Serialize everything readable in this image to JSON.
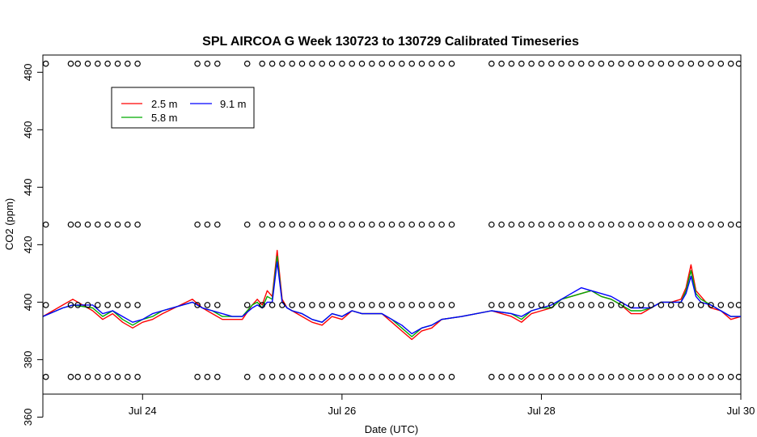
{
  "chart_data": {
    "type": "line",
    "title": "SPL AIRCOA G  Week 130723 to 130729  Calibrated Timeseries",
    "xlabel": "Date (UTC)",
    "ylabel": "CO2 (ppm)",
    "xlim": [
      23.0,
      30.0
    ],
    "ylim": [
      368,
      486
    ],
    "x_ticks": [
      {
        "value": 24,
        "label": "Jul 24"
      },
      {
        "value": 26,
        "label": "Jul 26"
      },
      {
        "value": 28,
        "label": "Jul 28"
      },
      {
        "value": 30,
        "label": "Jul 30"
      }
    ],
    "y_ticks": [
      360,
      380,
      400,
      420,
      440,
      460,
      480
    ],
    "legend": {
      "position": "top-left",
      "entries": [
        {
          "name": "2.5 m",
          "color": "#ff0000"
        },
        {
          "name": "5.8 m",
          "color": "#00aa00"
        },
        {
          "name": "9.1 m",
          "color": "#0000ff"
        }
      ]
    },
    "x": [
      23.0,
      23.2,
      23.3,
      23.5,
      23.6,
      23.7,
      23.8,
      23.9,
      24.0,
      24.1,
      24.2,
      24.5,
      24.6,
      24.7,
      24.8,
      24.9,
      25.0,
      25.1,
      25.15,
      25.2,
      25.25,
      25.3,
      25.35,
      25.4,
      25.45,
      25.5,
      25.6,
      25.7,
      25.8,
      25.9,
      26.0,
      26.1,
      26.2,
      26.3,
      26.4,
      26.5,
      26.6,
      26.7,
      26.8,
      26.9,
      27.0,
      27.2,
      27.5,
      27.7,
      27.8,
      27.9,
      28.0,
      28.1,
      28.2,
      28.3,
      28.4,
      28.5,
      28.6,
      28.7,
      28.8,
      28.9,
      29.0,
      29.1,
      29.2,
      29.3,
      29.4,
      29.45,
      29.5,
      29.55,
      29.6,
      29.7,
      29.8,
      29.9,
      30.0
    ],
    "series": [
      {
        "name": "2.5 m",
        "color": "#ff0000",
        "values": [
          395,
          399,
          401,
          397,
          394,
          396,
          393,
          391,
          393,
          394,
          396,
          401,
          398,
          396,
          394,
          394,
          394,
          399,
          401,
          399,
          404,
          402,
          418,
          401,
          398,
          397,
          395,
          393,
          392,
          395,
          394,
          397,
          396,
          396,
          396,
          393,
          390,
          387,
          390,
          391,
          394,
          395,
          397,
          395,
          393,
          396,
          397,
          398,
          401,
          402,
          403,
          404,
          402,
          401,
          399,
          396,
          396,
          398,
          400,
          400,
          401,
          405,
          413,
          404,
          402,
          398,
          397,
          394,
          395
        ]
      },
      {
        "name": "5.8 m",
        "color": "#00aa00",
        "values": [
          395,
          398,
          399,
          398,
          395,
          397,
          394,
          392,
          394,
          395,
          397,
          400,
          398,
          397,
          395,
          395,
          395,
          399,
          400,
          398,
          402,
          401,
          416,
          400,
          398,
          397,
          396,
          394,
          393,
          396,
          395,
          397,
          396,
          396,
          396,
          394,
          391,
          388,
          391,
          392,
          394,
          395,
          397,
          396,
          394,
          397,
          398,
          398,
          401,
          402,
          403,
          404,
          402,
          401,
          399,
          397,
          397,
          398,
          400,
          400,
          400,
          404,
          411,
          403,
          401,
          399,
          397,
          395,
          395
        ]
      },
      {
        "name": "9.1 m",
        "color": "#0000ff",
        "values": [
          395,
          398,
          399,
          399,
          396,
          397,
          395,
          393,
          394,
          396,
          397,
          400,
          398,
          397,
          396,
          395,
          395,
          398,
          399,
          398,
          400,
          400,
          414,
          400,
          398,
          397,
          396,
          394,
          393,
          396,
          395,
          397,
          396,
          396,
          396,
          394,
          392,
          389,
          391,
          392,
          394,
          395,
          397,
          396,
          395,
          397,
          398,
          399,
          401,
          403,
          405,
          404,
          403,
          402,
          400,
          398,
          398,
          398,
          400,
          400,
          400,
          403,
          409,
          402,
          400,
          399,
          397,
          395,
          395
        ]
      }
    ],
    "calibration_markers": {
      "levels": [
        483,
        427,
        399,
        374
      ],
      "x": [
        23.03,
        23.28,
        23.35,
        23.45,
        23.55,
        23.65,
        23.75,
        23.85,
        23.95,
        24.55,
        24.65,
        24.75,
        25.05,
        25.2,
        25.3,
        25.4,
        25.5,
        25.6,
        25.7,
        25.8,
        25.9,
        26.0,
        26.1,
        26.2,
        26.3,
        26.4,
        26.5,
        26.6,
        26.7,
        26.8,
        26.9,
        27.0,
        27.1,
        27.5,
        27.6,
        27.7,
        27.8,
        27.9,
        28.0,
        28.1,
        28.2,
        28.3,
        28.4,
        28.5,
        28.6,
        28.7,
        28.8,
        28.9,
        29.0,
        29.1,
        29.2,
        29.3,
        29.4,
        29.5,
        29.6,
        29.7,
        29.8,
        29.9,
        29.98
      ]
    }
  }
}
